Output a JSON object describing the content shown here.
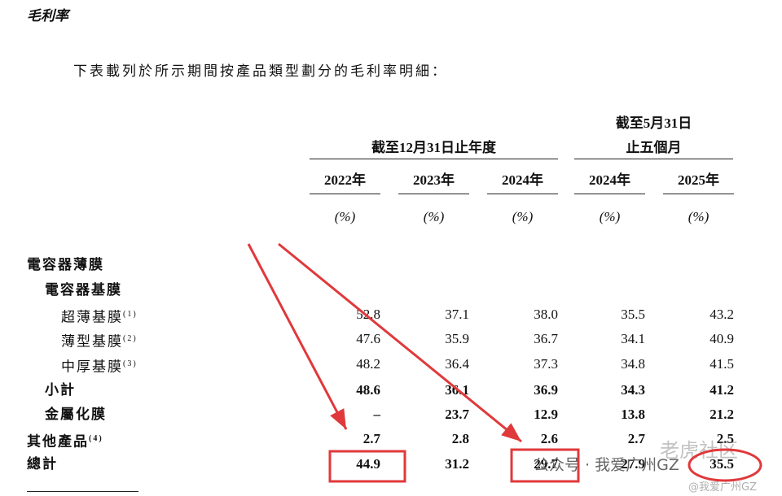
{
  "header": {
    "title": "毛利率",
    "intro": "下表載列於所示期間按產品類型劃分的毛利率明細："
  },
  "table": {
    "group_headers": [
      [
        "截至12月31日止年度"
      ],
      [
        "截至5月31日",
        "止五個月"
      ]
    ],
    "years": [
      "2022年",
      "2023年",
      "2024年",
      "2024年",
      "2025年"
    ],
    "units": [
      "(%)",
      "(%)",
      "(%)",
      "(%)",
      "(%)"
    ],
    "rows": [
      {
        "label": "電容器薄膜"
      },
      {
        "label": "電容器基膜"
      },
      {
        "label": "超薄基膜",
        "note": "(1)",
        "values": [
          "52.8",
          "37.1",
          "38.0",
          "35.5",
          "43.2"
        ]
      },
      {
        "label": "薄型基膜",
        "note": "(2)",
        "values": [
          "47.6",
          "35.9",
          "36.7",
          "34.1",
          "40.9"
        ]
      },
      {
        "label": "中厚基膜",
        "note": "(3)",
        "values": [
          "48.2",
          "36.4",
          "37.3",
          "34.8",
          "41.5"
        ]
      },
      {
        "label": "小計",
        "values": [
          "48.6",
          "36.1",
          "36.9",
          "34.3",
          "41.2"
        ]
      },
      {
        "label": "金屬化膜",
        "values": [
          "–",
          "23.7",
          "12.9",
          "13.8",
          "21.2"
        ]
      },
      {
        "label": "其他產品",
        "note": "(4)",
        "values": [
          "2.7",
          "2.8",
          "2.6",
          "2.7",
          "2.5"
        ]
      },
      {
        "label": "總計",
        "values": [
          "44.9",
          "31.2",
          "29.7",
          "27.9",
          "35.5"
        ]
      }
    ]
  },
  "watermarks": [
    "公众号 · 我爱广州GZ",
    "老虎社区",
    "@我爱广州GZ"
  ]
}
